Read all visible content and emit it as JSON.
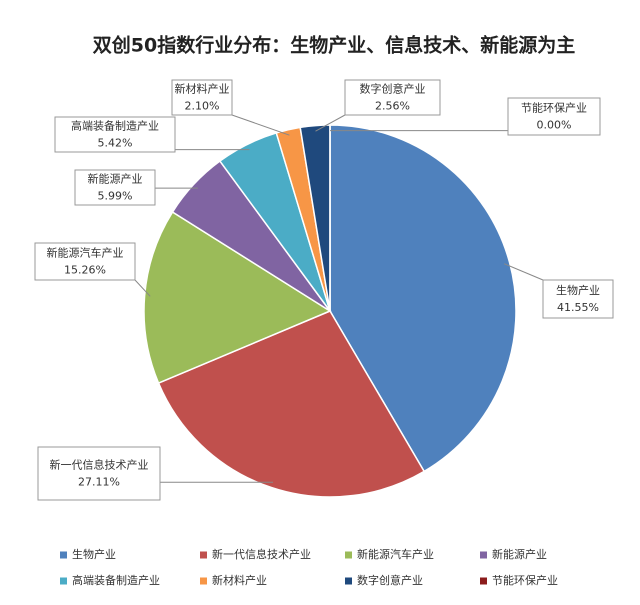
{
  "chart_data": {
    "type": "pie",
    "title": "双创50指数行业分布：生物产业、信息技术、新能源为主",
    "categories": [
      "生物产业",
      "新一代信息技术产业",
      "新能源汽车产业",
      "新能源产业",
      "高端装备制造产业",
      "新材料产业",
      "数字创意产业",
      "节能环保产业"
    ],
    "values": [
      41.55,
      27.11,
      15.26,
      5.99,
      5.42,
      2.1,
      2.56,
      0.0
    ],
    "value_labels": [
      "41.55%",
      "27.11%",
      "15.26%",
      "5.99%",
      "5.42%",
      "2.10%",
      "2.56%",
      "0.00%"
    ],
    "colors": [
      "#4f81bd",
      "#c0504d",
      "#9bbb59",
      "#8064a2",
      "#4bacc6",
      "#f79646",
      "#1f497d",
      "#8b1c1c"
    ],
    "legend": "bottom"
  }
}
